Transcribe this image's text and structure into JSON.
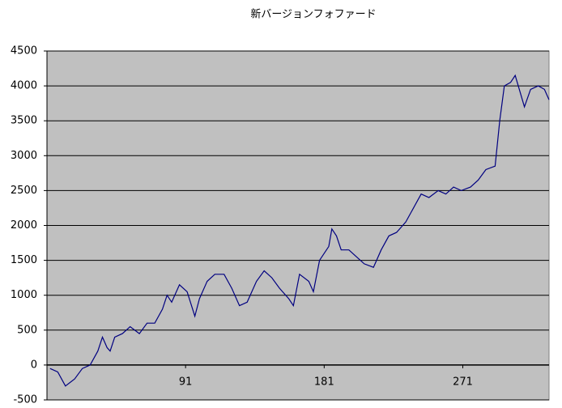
{
  "chart_data": {
    "type": "line",
    "title": "新バージョンフォファード",
    "x": [
      3,
      8,
      13,
      19,
      24,
      29,
      34,
      37,
      40,
      42,
      45,
      50,
      55,
      61,
      66,
      71,
      76,
      79,
      82,
      87,
      92,
      97,
      100,
      105,
      110,
      116,
      121,
      126,
      131,
      137,
      142,
      147,
      152,
      158,
      161,
      165,
      171,
      174,
      178,
      184,
      186,
      189,
      192,
      197,
      202,
      207,
      213,
      218,
      223,
      228,
      234,
      239,
      244,
      249,
      255,
      260,
      265,
      270,
      276,
      281,
      286,
      292,
      295,
      298,
      302,
      305,
      307,
      311,
      315,
      320,
      324,
      327
    ],
    "series": [
      {
        "color": "#000080",
        "values": [
          -50,
          -100,
          -300,
          -200,
          -50,
          0,
          200,
          400,
          250,
          200,
          400,
          450,
          550,
          450,
          600,
          600,
          800,
          1000,
          900,
          1150,
          1050,
          700,
          950,
          1200,
          1300,
          1300,
          1100,
          850,
          900,
          1200,
          1350,
          1250,
          1100,
          950,
          850,
          1300,
          1200,
          1050,
          1500,
          1700,
          1950,
          1850,
          1650,
          1650,
          1550,
          1450,
          1400,
          1650,
          1850,
          1900,
          2050,
          2250,
          2450,
          2400,
          2500,
          2450,
          2550,
          2500,
          2550,
          2650,
          2800,
          2850,
          3500,
          4000,
          4050,
          4150,
          4000,
          3700,
          3950,
          4000,
          3950,
          3800
        ]
      }
    ],
    "xlim": [
      1,
      327
    ],
    "xticks": [
      91,
      181,
      271
    ],
    "ylim": [
      -500,
      4500
    ],
    "yticks": [
      -500,
      0,
      500,
      1000,
      1500,
      2000,
      2500,
      3000,
      3500,
      4000,
      4500
    ],
    "grid": true
  }
}
